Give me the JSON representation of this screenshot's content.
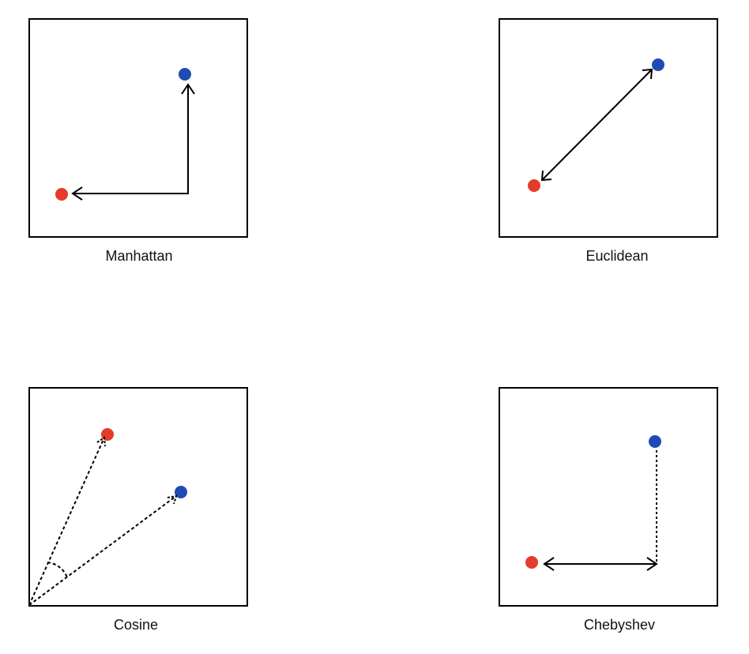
{
  "colors": {
    "point_a": "#e53b2b",
    "point_b": "#1f4bb5",
    "stroke": "#000000"
  },
  "panels": [
    {
      "name": "manhattan",
      "label": "Manhattan"
    },
    {
      "name": "euclidean",
      "label": "Euclidean"
    },
    {
      "name": "cosine",
      "label": "Cosine"
    },
    {
      "name": "chebyshev",
      "label": "Chebyshev"
    }
  ]
}
